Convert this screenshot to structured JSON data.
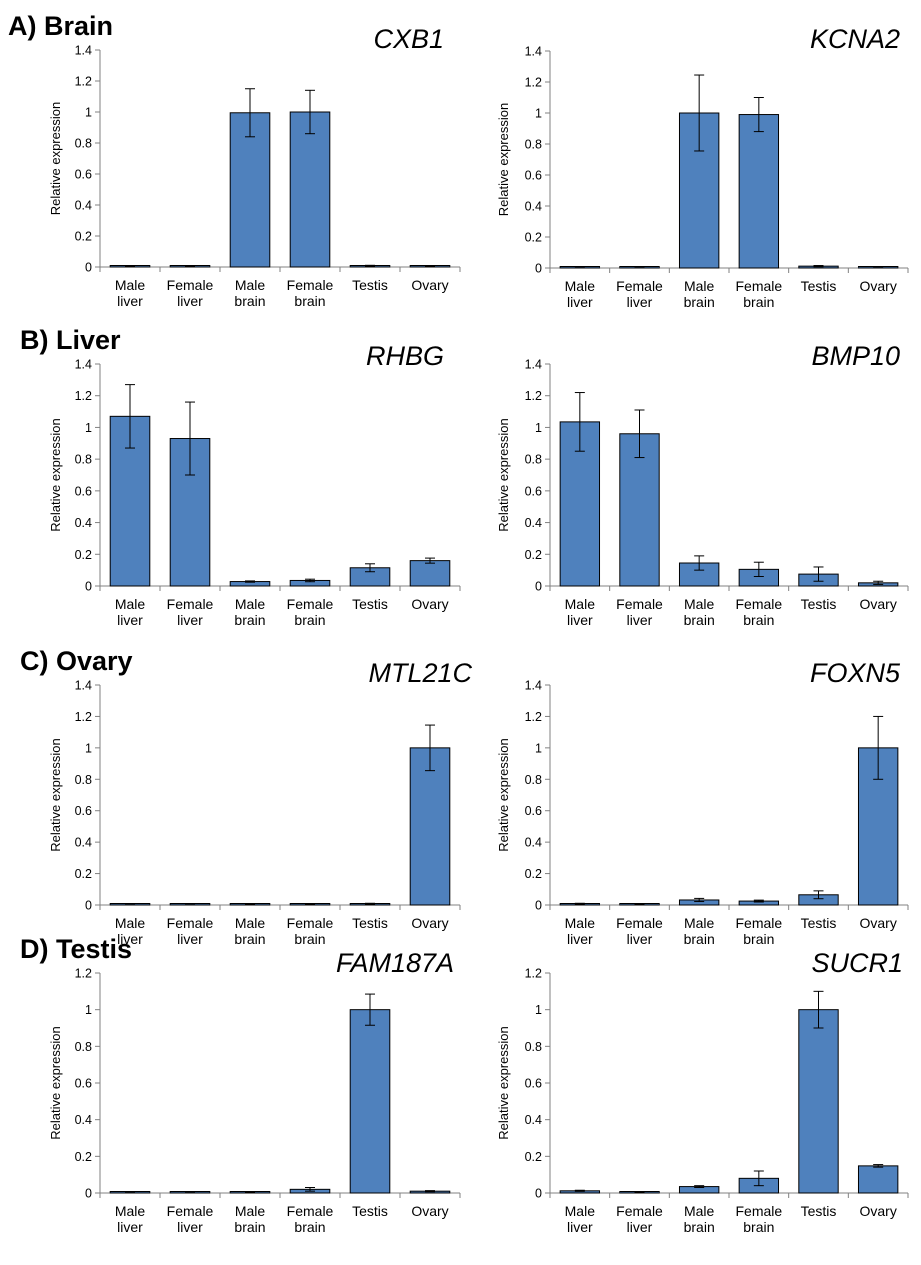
{
  "sections": [
    {
      "label": "A) Brain"
    },
    {
      "label": "B) Liver"
    },
    {
      "label": "C) Ovary"
    },
    {
      "label": "D) Testis"
    }
  ],
  "chart_data": [
    {
      "type": "bar",
      "title": "CXB1",
      "ylabel": "Relative expression",
      "ylim": [
        0,
        1.4
      ],
      "yticks": [
        "0",
        "0.2",
        "0.4",
        "0.6",
        "0.8",
        "1",
        "1.2",
        "1.4"
      ],
      "categories": [
        [
          "Male",
          "liver"
        ],
        [
          "Female",
          "liver"
        ],
        [
          "Male",
          "brain"
        ],
        [
          "Female",
          "brain"
        ],
        [
          "Testis"
        ],
        [
          "Ovary"
        ]
      ],
      "values": [
        0.002,
        0.002,
        0.995,
        1.0,
        0.008,
        0.003
      ],
      "errors": [
        0.001,
        0.001,
        0.155,
        0.14,
        0.003,
        0.001
      ],
      "bar_color": "#4f81bd"
    },
    {
      "type": "bar",
      "title": "KCNA2",
      "ylabel": "Relative expression",
      "ylim": [
        0,
        1.4
      ],
      "yticks": [
        "0",
        "0.2",
        "0.4",
        "0.6",
        "0.8",
        "1",
        "1.2",
        "1.4"
      ],
      "categories": [
        [
          "Male",
          "liver"
        ],
        [
          "Female",
          "liver"
        ],
        [
          "Male",
          "brain"
        ],
        [
          "Female",
          "brain"
        ],
        [
          "Testis"
        ],
        [
          "Ovary"
        ]
      ],
      "values": [
        0.001,
        0.001,
        1.0,
        0.99,
        0.012,
        0.001
      ],
      "errors": [
        0.001,
        0.001,
        0.245,
        0.11,
        0.004,
        0.001
      ],
      "bar_color": "#4f81bd"
    },
    {
      "type": "bar",
      "title": "RHBG",
      "ylabel": "Relative expression",
      "ylim": [
        0,
        1.4
      ],
      "yticks": [
        "0",
        "0.2",
        "0.4",
        "0.6",
        "0.8",
        "1",
        "1.2",
        "1.4"
      ],
      "categories": [
        [
          "Male",
          "liver"
        ],
        [
          "Female",
          "liver"
        ],
        [
          "Male",
          "brain"
        ],
        [
          "Female",
          "brain"
        ],
        [
          "Testis"
        ],
        [
          "Ovary"
        ]
      ],
      "values": [
        1.07,
        0.93,
        0.028,
        0.035,
        0.115,
        0.16
      ],
      "errors": [
        0.2,
        0.23,
        0.004,
        0.008,
        0.025,
        0.016
      ],
      "bar_color": "#4f81bd"
    },
    {
      "type": "bar",
      "title": "BMP10",
      "ylabel": "Relative expression",
      "ylim": [
        0,
        1.4
      ],
      "yticks": [
        "0",
        "0.2",
        "0.4",
        "0.6",
        "0.8",
        "1",
        "1.2",
        "1.4"
      ],
      "categories": [
        [
          "Male",
          "liver"
        ],
        [
          "Female",
          "liver"
        ],
        [
          "Male",
          "brain"
        ],
        [
          "Female",
          "brain"
        ],
        [
          "Testis"
        ],
        [
          "Ovary"
        ]
      ],
      "values": [
        1.035,
        0.96,
        0.145,
        0.105,
        0.075,
        0.02
      ],
      "errors": [
        0.185,
        0.15,
        0.045,
        0.045,
        0.045,
        0.01
      ],
      "bar_color": "#4f81bd"
    },
    {
      "type": "bar",
      "title": "MTL21C",
      "ylabel": "Relative expression",
      "ylim": [
        0,
        1.4
      ],
      "yticks": [
        "0",
        "0.2",
        "0.4",
        "0.6",
        "0.8",
        "1",
        "1.2",
        "1.4"
      ],
      "categories": [
        [
          "Male",
          "liver"
        ],
        [
          "Female",
          "liver"
        ],
        [
          "Male",
          "brain"
        ],
        [
          "Female",
          "brain"
        ],
        [
          "Testis"
        ],
        [
          "Ovary"
        ]
      ],
      "values": [
        0.001,
        0.001,
        0.005,
        0.007,
        0.008,
        1.0
      ],
      "errors": [
        0.001,
        0.001,
        0.002,
        0.002,
        0.003,
        0.145
      ],
      "bar_color": "#4f81bd"
    },
    {
      "type": "bar",
      "title": "FOXN5",
      "ylabel": "Relative expression",
      "ylim": [
        0,
        1.4
      ],
      "yticks": [
        "0",
        "0.2",
        "0.4",
        "0.6",
        "0.8",
        "1",
        "1.2",
        "1.4"
      ],
      "categories": [
        [
          "Male",
          "liver"
        ],
        [
          "Female",
          "liver"
        ],
        [
          "Male",
          "brain"
        ],
        [
          "Female",
          "brain"
        ],
        [
          "Testis"
        ],
        [
          "Ovary"
        ]
      ],
      "values": [
        0.008,
        0.005,
        0.032,
        0.025,
        0.065,
        1.0
      ],
      "errors": [
        0.003,
        0.002,
        0.01,
        0.006,
        0.025,
        0.2
      ],
      "bar_color": "#4f81bd"
    },
    {
      "type": "bar",
      "title": "FAM187A",
      "ylabel": "Relative expression",
      "ylim": [
        0,
        1.2
      ],
      "yticks": [
        "0",
        "0.2",
        "0.4",
        "0.6",
        "0.8",
        "1",
        "1.2"
      ],
      "categories": [
        [
          "Male",
          "liver"
        ],
        [
          "Female",
          "liver"
        ],
        [
          "Male",
          "brain"
        ],
        [
          "Female",
          "brain"
        ],
        [
          "Testis"
        ],
        [
          "Ovary"
        ]
      ],
      "values": [
        0.001,
        0.001,
        0.005,
        0.02,
        1.0,
        0.01
      ],
      "errors": [
        0.001,
        0.001,
        0.002,
        0.01,
        0.085,
        0.003
      ],
      "bar_color": "#4f81bd"
    },
    {
      "type": "bar",
      "title": "SUCR1",
      "ylabel": "Relative expression",
      "ylim": [
        0,
        1.2
      ],
      "yticks": [
        "0",
        "0.2",
        "0.4",
        "0.6",
        "0.8",
        "1",
        "1.2"
      ],
      "categories": [
        [
          "Male",
          "liver"
        ],
        [
          "Female",
          "liver"
        ],
        [
          "Male",
          "brain"
        ],
        [
          "Female",
          "brain"
        ],
        [
          "Testis"
        ],
        [
          "Ovary"
        ]
      ],
      "values": [
        0.012,
        0.006,
        0.035,
        0.08,
        1.0,
        0.148
      ],
      "errors": [
        0.003,
        0.002,
        0.005,
        0.04,
        0.1,
        0.007
      ],
      "bar_color": "#4f81bd"
    }
  ]
}
